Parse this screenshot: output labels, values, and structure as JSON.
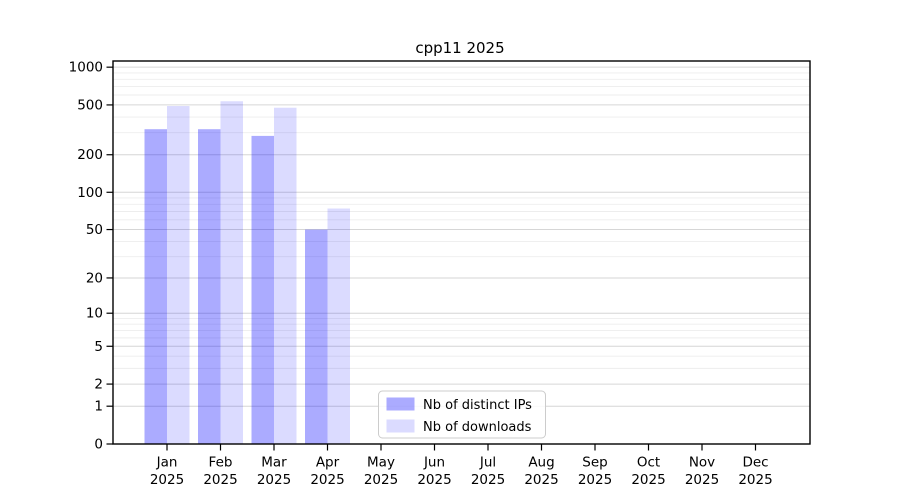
{
  "chart_data": {
    "type": "bar",
    "title": "cpp11 2025",
    "xlabel": "",
    "ylabel": "",
    "scale": "log1p",
    "ylim": [
      0,
      1120
    ],
    "grid": true,
    "x": [
      {
        "month": "Jan",
        "year": "2025"
      },
      {
        "month": "Feb",
        "year": "2025"
      },
      {
        "month": "Mar",
        "year": "2025"
      },
      {
        "month": "Apr",
        "year": "2025"
      },
      {
        "month": "May",
        "year": "2025"
      },
      {
        "month": "Jun",
        "year": "2025"
      },
      {
        "month": "Jul",
        "year": "2025"
      },
      {
        "month": "Aug",
        "year": "2025"
      },
      {
        "month": "Sep",
        "year": "2025"
      },
      {
        "month": "Oct",
        "year": "2025"
      },
      {
        "month": "Nov",
        "year": "2025"
      },
      {
        "month": "Dec",
        "year": "2025"
      }
    ],
    "series": [
      {
        "name": "Nb of distinct IPs",
        "color_hex": "#a8a8fa",
        "fill_rgba": "rgba(0,0,255,0.33)",
        "values": [
          320,
          320,
          283,
          50,
          null,
          null,
          null,
          null,
          null,
          null,
          null,
          null
        ]
      },
      {
        "name": "Nb of downloads",
        "color_hex": "#dcdcfc",
        "fill_rgba": "rgba(0,0,255,0.14)",
        "values": [
          490,
          535,
          475,
          74,
          null,
          null,
          null,
          null,
          null,
          null,
          null,
          null
        ]
      }
    ],
    "y_axis": {
      "min": 0,
      "max": 1120,
      "ticks": [
        0,
        1,
        2,
        5,
        10,
        20,
        50,
        100,
        200,
        500,
        1000
      ],
      "minor_ticks": [
        3,
        4,
        6,
        7,
        8,
        9,
        30,
        40,
        60,
        70,
        80,
        90,
        300,
        400,
        600,
        700,
        800,
        900
      ]
    },
    "gridline_colors": {
      "major": "#d6d6d6",
      "minor": "#ededed"
    },
    "legend": {
      "position": "lower center",
      "border_color": "#cccccc",
      "entries": [
        "Nb of distinct IPs",
        "Nb of downloads"
      ]
    }
  }
}
